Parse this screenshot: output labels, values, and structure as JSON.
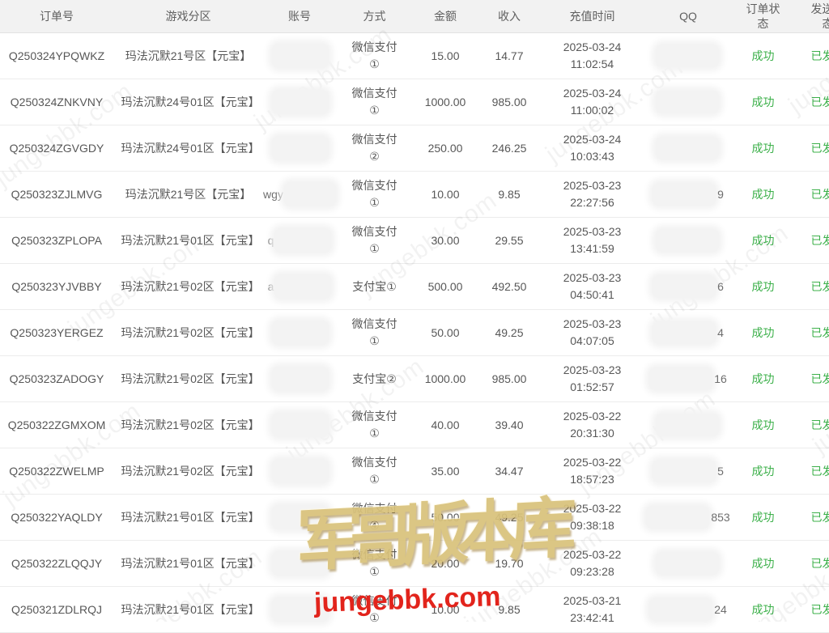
{
  "table": {
    "columns": [
      {
        "key": "order",
        "label": "订单号"
      },
      {
        "key": "zone",
        "label": "游戏分区"
      },
      {
        "key": "account",
        "label": "账号"
      },
      {
        "key": "method",
        "label": "方式"
      },
      {
        "key": "amount",
        "label": "金额"
      },
      {
        "key": "income",
        "label": "收入"
      },
      {
        "key": "time",
        "label": "充值时间"
      },
      {
        "key": "qq",
        "label": "QQ"
      },
      {
        "key": "status",
        "label": "订单状态"
      },
      {
        "key": "send",
        "label": "发送状态"
      }
    ],
    "rows": [
      {
        "order": "Q250324YPQWKZ",
        "zone": "玛法沉默21号区【元宝】",
        "account_visible": "",
        "method1": "微信支付",
        "method2": "①",
        "amount": "15.00",
        "income": "14.77",
        "date": "2025-03-24",
        "clock": "11:02:54",
        "qq_visible": "",
        "status": "成功",
        "send": "已发送"
      },
      {
        "order": "Q250324ZNKVNY",
        "zone": "玛法沉默24号01区【元宝】",
        "account_visible": "",
        "method1": "微信支付",
        "method2": "①",
        "amount": "1000.00",
        "income": "985.00",
        "date": "2025-03-24",
        "clock": "11:00:02",
        "qq_visible": "",
        "status": "成功",
        "send": "已发送"
      },
      {
        "order": "Q250324ZGVGDY",
        "zone": "玛法沉默24号01区【元宝】",
        "account_visible": "",
        "method1": "微信支付",
        "method2": "②",
        "amount": "250.00",
        "income": "246.25",
        "date": "2025-03-24",
        "clock": "10:03:43",
        "qq_visible": "",
        "status": "成功",
        "send": "已发送"
      },
      {
        "order": "Q250323ZJLMVG",
        "zone": "玛法沉默21号区【元宝】",
        "account_visible": "wgy",
        "method1": "微信支付",
        "method2": "①",
        "amount": "10.00",
        "income": "9.85",
        "date": "2025-03-23",
        "clock": "22:27:56",
        "qq_visible": "9",
        "status": "成功",
        "send": "已发送"
      },
      {
        "order": "Q250323ZPLOPA",
        "zone": "玛法沉默21号01区【元宝】",
        "account_visible": "q",
        "method1": "微信支付",
        "method2": "①",
        "amount": "30.00",
        "income": "29.55",
        "date": "2025-03-23",
        "clock": "13:41:59",
        "qq_visible": "",
        "status": "成功",
        "send": "已发送"
      },
      {
        "order": "Q250323YJVBBY",
        "zone": "玛法沉默21号02区【元宝】",
        "account_visible": "a",
        "method1": "支付宝①",
        "method2": "",
        "amount": "500.00",
        "income": "492.50",
        "date": "2025-03-23",
        "clock": "04:50:41",
        "qq_visible": "6",
        "status": "成功",
        "send": "已发送"
      },
      {
        "order": "Q250323YERGEZ",
        "zone": "玛法沉默21号02区【元宝】",
        "account_visible": "",
        "method1": "微信支付",
        "method2": "①",
        "amount": "50.00",
        "income": "49.25",
        "date": "2025-03-23",
        "clock": "04:07:05",
        "qq_visible": "4",
        "status": "成功",
        "send": "已发送"
      },
      {
        "order": "Q250323ZADOGY",
        "zone": "玛法沉默21号02区【元宝】",
        "account_visible": "",
        "method1": "支付宝②",
        "method2": "",
        "amount": "1000.00",
        "income": "985.00",
        "date": "2025-03-23",
        "clock": "01:52:57",
        "qq_visible": "16",
        "status": "成功",
        "send": "已发送"
      },
      {
        "order": "Q250322ZGMXOM",
        "zone": "玛法沉默21号02区【元宝】",
        "account_visible": "",
        "method1": "微信支付",
        "method2": "①",
        "amount": "40.00",
        "income": "39.40",
        "date": "2025-03-22",
        "clock": "20:31:30",
        "qq_visible": "",
        "status": "成功",
        "send": "已发送"
      },
      {
        "order": "Q250322ZWELMP",
        "zone": "玛法沉默21号02区【元宝】",
        "account_visible": "",
        "method1": "微信支付",
        "method2": "①",
        "amount": "35.00",
        "income": "34.47",
        "date": "2025-03-22",
        "clock": "18:57:23",
        "qq_visible": "5",
        "status": "成功",
        "send": "已发送"
      },
      {
        "order": "Q250322YAQLDY",
        "zone": "玛法沉默21号01区【元宝】",
        "account_visible": "",
        "method1": "微信支付",
        "method2": "④",
        "amount": "50.00",
        "income": "49.25",
        "date": "2025-03-22",
        "clock": "09:38:18",
        "qq_visible": "853",
        "status": "成功",
        "send": "已发送"
      },
      {
        "order": "Q250322ZLQQJY",
        "zone": "玛法沉默21号01区【元宝】",
        "account_visible": "",
        "method1": "微信支付",
        "method2": "①",
        "amount": "20.00",
        "income": "19.70",
        "date": "2025-03-22",
        "clock": "09:23:28",
        "qq_visible": "",
        "status": "成功",
        "send": "已发送"
      },
      {
        "order": "Q250321ZDLRQJ",
        "zone": "玛法沉默21号01区【元宝】",
        "account_visible": "",
        "method1": "微信支付",
        "method2": "①",
        "amount": "10.00",
        "income": "9.85",
        "date": "2025-03-21",
        "clock": "23:42:41",
        "qq_visible": "24",
        "status": "成功",
        "send": "已发送"
      }
    ]
  },
  "watermark": {
    "diagonal_text": "jungebbk.com",
    "logo_text": "军哥版本库",
    "logo_url_text": "jungebbk.com"
  },
  "colors": {
    "status_green": "#3cb04a",
    "logo_gold": "#d9c27a",
    "url_red": "#e2241c",
    "header_bg": "#f2f2f2"
  }
}
